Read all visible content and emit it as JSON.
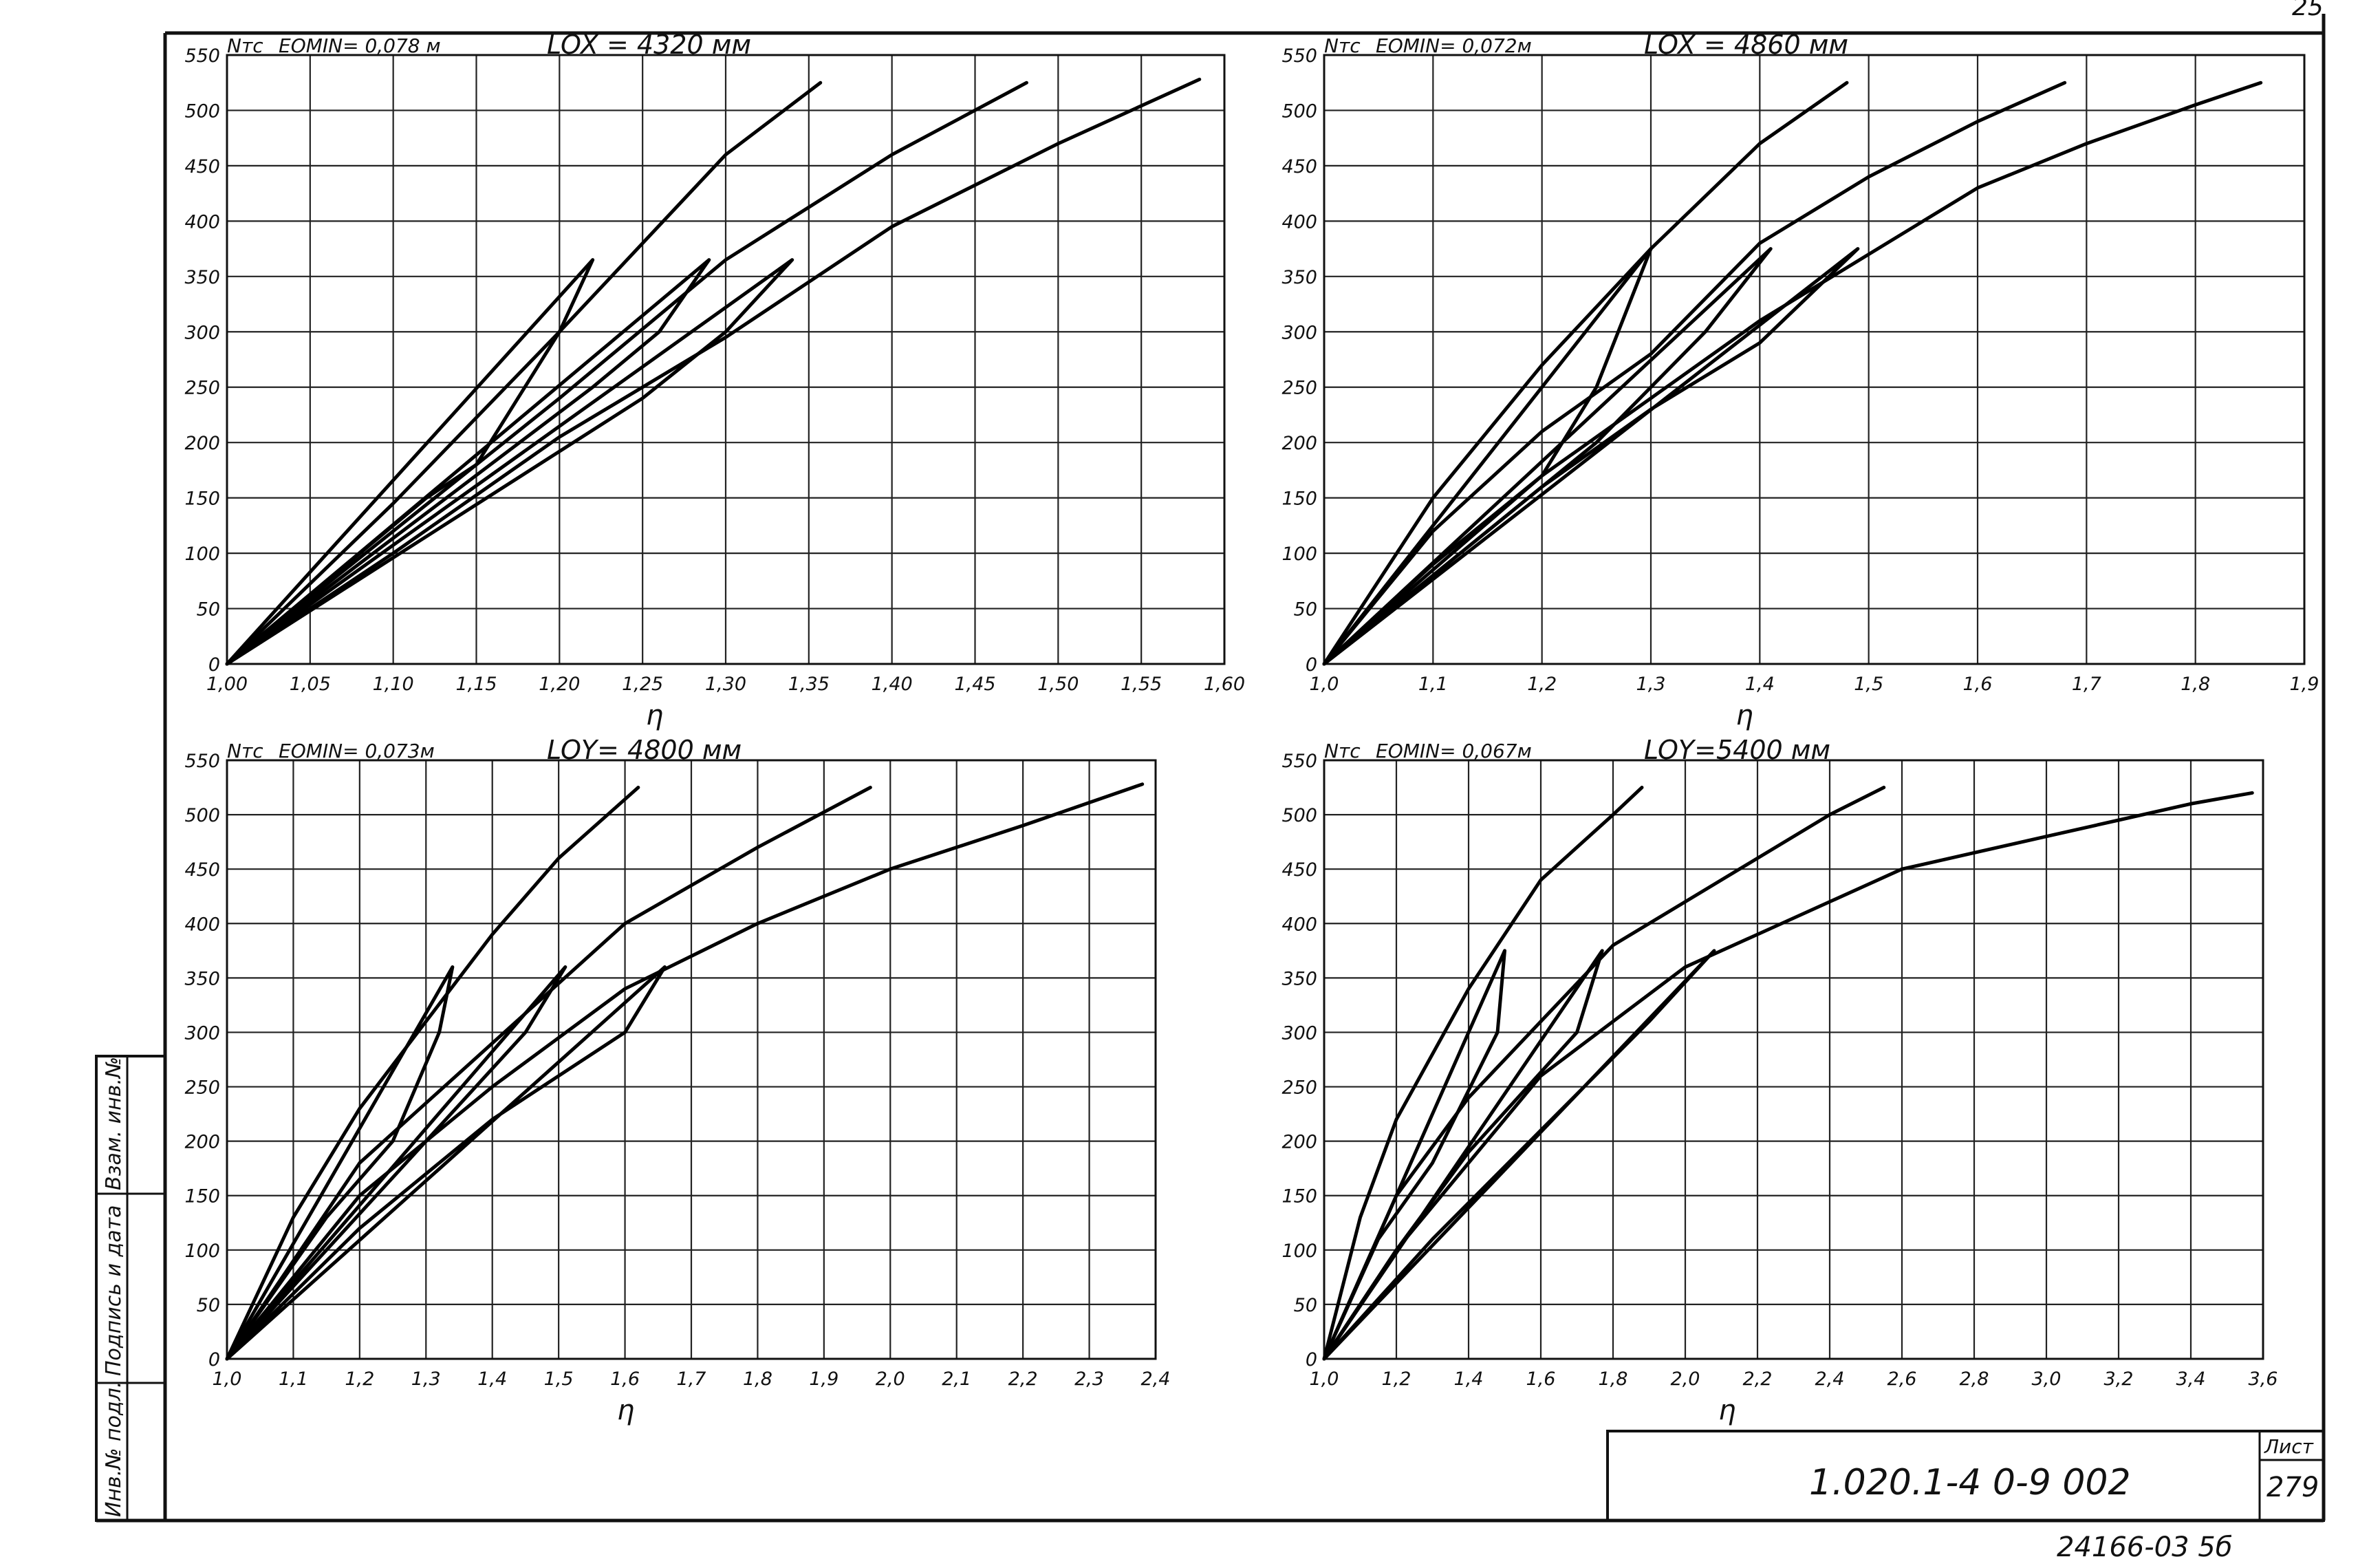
{
  "page": {
    "corner_mark": "25",
    "designation": "1.020.1-4 0-9 002",
    "sheet_label": "Лист",
    "sheet_number": "279",
    "archive_number": "24166-03 5б",
    "side_labels": [
      "Инв.№ подл.",
      "Подпись и дата",
      "Взам. инв.№"
    ]
  },
  "chart_data": [
    {
      "type": "line",
      "title": "LOX = 4320 мм",
      "eomin_label": "EOMIN= 0,078 м",
      "ylabel": "Nтс",
      "xlabel": "η",
      "xlim": [
        1.0,
        1.6
      ],
      "ylim": [
        0,
        550
      ],
      "xticks": [
        1.0,
        1.05,
        1.1,
        1.15,
        1.2,
        1.25,
        1.3,
        1.35,
        1.4,
        1.45,
        1.5,
        1.55,
        1.6
      ],
      "xtick_labels": [
        "1,00",
        "1,05",
        "1,10",
        "1,15",
        "1,20",
        "1,25",
        "1,30",
        "1,35",
        "1,40",
        "1,45",
        "1,50",
        "1,55",
        "1,60"
      ],
      "yticks": [
        0,
        50,
        100,
        150,
        200,
        250,
        300,
        350,
        400,
        450,
        500,
        550
      ],
      "ytick_labels": [
        "0",
        "50",
        "100",
        "150",
        "200",
        "250",
        "300",
        "350",
        "400",
        "450",
        "500",
        "550"
      ],
      "grid": true,
      "series": [
        {
          "x": [
            1.0,
            1.1,
            1.2,
            1.3,
            1.357
          ],
          "y": [
            0,
            145,
            300,
            460,
            525
          ]
        },
        {
          "x": [
            1.0,
            1.1,
            1.2,
            1.3,
            1.4,
            1.481
          ],
          "y": [
            0,
            120,
            240,
            365,
            460,
            525
          ]
        },
        {
          "x": [
            1.0,
            1.1,
            1.2,
            1.3,
            1.4,
            1.5,
            1.585
          ],
          "y": [
            0,
            100,
            205,
            295,
            395,
            470,
            528
          ]
        },
        {
          "x": [
            1.0,
            1.22,
            1.2,
            1.15,
            1.12,
            1.0
          ],
          "y": [
            0,
            365,
            300,
            180,
            150,
            0
          ]
        },
        {
          "x": [
            1.0,
            1.29,
            1.26,
            1.22,
            1.0
          ],
          "y": [
            0,
            365,
            300,
            250,
            0
          ]
        },
        {
          "x": [
            1.0,
            1.34,
            1.3,
            1.25,
            1.0
          ],
          "y": [
            0,
            365,
            300,
            240,
            0
          ]
        }
      ]
    },
    {
      "type": "line",
      "title": "LOX = 4860 мм",
      "eomin_label": "EOMIN= 0,072м",
      "ylabel": "Nтс",
      "xlabel": "η",
      "xlim": [
        1.0,
        1.9
      ],
      "ylim": [
        0,
        550
      ],
      "xticks": [
        1.0,
        1.1,
        1.2,
        1.3,
        1.4,
        1.5,
        1.6,
        1.7,
        1.8,
        1.9
      ],
      "xtick_labels": [
        "1,0",
        "1,1",
        "1,2",
        "1,3",
        "1,4",
        "1,5",
        "1,6",
        "1,7",
        "1,8",
        "1,9"
      ],
      "yticks": [
        0,
        50,
        100,
        150,
        200,
        250,
        300,
        350,
        400,
        450,
        500,
        550
      ],
      "ytick_labels": [
        "0",
        "50",
        "100",
        "150",
        "200",
        "250",
        "300",
        "350",
        "400",
        "450",
        "500",
        "550"
      ],
      "grid": true,
      "series": [
        {
          "x": [
            1.0,
            1.1,
            1.2,
            1.3,
            1.4,
            1.48
          ],
          "y": [
            0,
            150,
            270,
            375,
            470,
            525
          ]
        },
        {
          "x": [
            1.0,
            1.1,
            1.2,
            1.3,
            1.4,
            1.5,
            1.6,
            1.68
          ],
          "y": [
            0,
            120,
            210,
            280,
            380,
            440,
            490,
            525
          ]
        },
        {
          "x": [
            1.0,
            1.1,
            1.2,
            1.3,
            1.4,
            1.5,
            1.6,
            1.7,
            1.8,
            1.86
          ],
          "y": [
            0,
            90,
            170,
            240,
            310,
            370,
            430,
            470,
            505,
            525
          ]
        },
        {
          "x": [
            1.0,
            1.3,
            1.27,
            1.25,
            1.2,
            1.0
          ],
          "y": [
            0,
            375,
            300,
            250,
            170,
            0
          ]
        },
        {
          "x": [
            1.0,
            1.41,
            1.35,
            1.3,
            1.25,
            1.0
          ],
          "y": [
            0,
            375,
            300,
            250,
            200,
            0
          ]
        },
        {
          "x": [
            1.0,
            1.49,
            1.4,
            1.3,
            1.2,
            1.0
          ],
          "y": [
            0,
            375,
            290,
            230,
            160,
            0
          ]
        }
      ]
    },
    {
      "type": "line",
      "title": "LOY= 4800 мм",
      "eomin_label": "EOMIN= 0,073м",
      "ylabel": "Nтс",
      "xlabel": "η",
      "xlim": [
        1.0,
        2.4
      ],
      "ylim": [
        0,
        550
      ],
      "xticks": [
        1.0,
        1.1,
        1.2,
        1.3,
        1.4,
        1.5,
        1.6,
        1.7,
        1.8,
        1.9,
        2.0,
        2.1,
        2.2,
        2.3,
        2.4
      ],
      "xtick_labels": [
        "1,0",
        "1,1",
        "1,2",
        "1,3",
        "1,4",
        "1,5",
        "1,6",
        "1,7",
        "1,8",
        "1,9",
        "2,0",
        "2,1",
        "2,2",
        "2,3",
        "2,4"
      ],
      "yticks": [
        0,
        50,
        100,
        150,
        200,
        250,
        300,
        350,
        400,
        450,
        500,
        550
      ],
      "ytick_labels": [
        "0",
        "50",
        "100",
        "150",
        "200",
        "250",
        "300",
        "350",
        "400",
        "450",
        "500",
        "550"
      ],
      "grid": true,
      "series": [
        {
          "x": [
            1.0,
            1.1,
            1.2,
            1.3,
            1.4,
            1.5,
            1.62
          ],
          "y": [
            0,
            130,
            230,
            310,
            390,
            460,
            525
          ]
        },
        {
          "x": [
            1.0,
            1.2,
            1.4,
            1.6,
            1.8,
            1.97
          ],
          "y": [
            0,
            180,
            290,
            400,
            470,
            525
          ]
        },
        {
          "x": [
            1.0,
            1.2,
            1.4,
            1.6,
            1.8,
            2.0,
            2.2,
            2.38
          ],
          "y": [
            0,
            150,
            250,
            340,
            400,
            450,
            490,
            528
          ]
        },
        {
          "x": [
            1.0,
            1.34,
            1.32,
            1.25,
            1.15,
            1.0
          ],
          "y": [
            0,
            360,
            300,
            200,
            130,
            0
          ]
        },
        {
          "x": [
            1.0,
            1.51,
            1.45,
            1.3,
            1.15,
            1.0
          ],
          "y": [
            0,
            360,
            300,
            200,
            100,
            0
          ]
        },
        {
          "x": [
            1.0,
            1.66,
            1.6,
            1.4,
            1.2,
            1.0
          ],
          "y": [
            0,
            360,
            300,
            220,
            120,
            0
          ]
        }
      ]
    },
    {
      "type": "line",
      "title": "LOY=5400 мм",
      "eomin_label": "EOMIN= 0,067м",
      "ylabel": "Nтс",
      "xlabel": "η",
      "xlim": [
        1.0,
        3.6
      ],
      "ylim": [
        0,
        550
      ],
      "xticks": [
        1.0,
        1.2,
        1.4,
        1.6,
        1.8,
        2.0,
        2.2,
        2.4,
        2.6,
        2.8,
        3.0,
        3.2,
        3.4,
        3.6
      ],
      "xtick_labels": [
        "1,0",
        "1,2",
        "1,4",
        "1,6",
        "1,8",
        "2,0",
        "2,2",
        "2,4",
        "2,6",
        "2,8",
        "3,0",
        "3,2",
        "3,4",
        "3,6"
      ],
      "yticks": [
        0,
        50,
        100,
        150,
        200,
        250,
        300,
        350,
        400,
        450,
        500,
        550
      ],
      "ytick_labels": [
        "0",
        "50",
        "100",
        "150",
        "200",
        "250",
        "300",
        "350",
        "400",
        "450",
        "500",
        "550"
      ],
      "grid": true,
      "series": [
        {
          "x": [
            1.0,
            1.1,
            1.2,
            1.4,
            1.6,
            1.8,
            1.88
          ],
          "y": [
            0,
            130,
            220,
            340,
            440,
            500,
            525
          ]
        },
        {
          "x": [
            1.0,
            1.2,
            1.4,
            1.6,
            1.8,
            2.0,
            2.2,
            2.4,
            2.55
          ],
          "y": [
            0,
            150,
            240,
            310,
            380,
            420,
            460,
            500,
            525
          ]
        },
        {
          "x": [
            1.0,
            1.2,
            1.4,
            1.6,
            1.8,
            2.0,
            2.2,
            2.4,
            2.6,
            2.8,
            3.0,
            3.2,
            3.4,
            3.57
          ],
          "y": [
            0,
            100,
            180,
            260,
            310,
            360,
            390,
            420,
            450,
            465,
            480,
            495,
            510,
            520
          ]
        },
        {
          "x": [
            1.0,
            1.5,
            1.48,
            1.3,
            1.15,
            1.0
          ],
          "y": [
            0,
            375,
            300,
            180,
            110,
            0
          ]
        },
        {
          "x": [
            1.0,
            1.77,
            1.7,
            1.4,
            1.2,
            1.0
          ],
          "y": [
            0,
            375,
            300,
            190,
            100,
            0
          ]
        },
        {
          "x": [
            1.0,
            2.08,
            1.9,
            1.6,
            1.3,
            1.0
          ],
          "y": [
            0,
            375,
            310,
            210,
            110,
            0
          ]
        }
      ]
    }
  ]
}
